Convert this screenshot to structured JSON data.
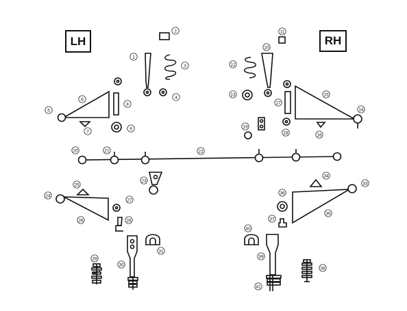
{
  "labels": {
    "left_side": "LH",
    "right_side": "RH"
  },
  "callouts": [
    "1",
    "2",
    "3",
    "4",
    "5",
    "6",
    "7",
    "8",
    "9",
    "10",
    "11",
    "12",
    "13",
    "14",
    "15",
    "16",
    "17",
    "18",
    "19",
    "20",
    "21",
    "22",
    "23",
    "24",
    "25",
    "26",
    "27",
    "28",
    "29",
    "30",
    "31",
    "33",
    "34",
    "35",
    "36",
    "37",
    "38",
    "39",
    "40",
    "41"
  ],
  "colors": {
    "line": "#111111",
    "background": "#ffffff"
  }
}
